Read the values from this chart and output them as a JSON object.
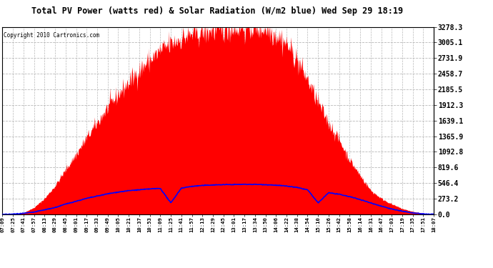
{
  "title": "Total PV Power (watts red) & Solar Radiation (W/m2 blue) Wed Sep 29 18:19",
  "copyright": "Copyright 2010 Cartronics.com",
  "y_ticks": [
    0.0,
    273.2,
    546.4,
    819.6,
    1092.8,
    1365.9,
    1639.1,
    1912.3,
    2185.5,
    2458.7,
    2731.9,
    3005.1,
    3278.3
  ],
  "y_max": 3278.3,
  "bg_color": "#ffffff",
  "plot_bg_color": "#ffffff",
  "grid_color": "#b0b0b0",
  "red_fill": "#ff0000",
  "blue_line": "#0000ff",
  "x_labels": [
    "07:09",
    "07:25",
    "07:41",
    "07:57",
    "08:13",
    "08:29",
    "08:45",
    "09:01",
    "09:17",
    "09:33",
    "09:49",
    "10:05",
    "10:21",
    "10:37",
    "10:53",
    "11:09",
    "11:25",
    "11:41",
    "11:57",
    "12:13",
    "12:29",
    "12:45",
    "13:01",
    "13:17",
    "13:34",
    "13:50",
    "14:06",
    "14:22",
    "14:38",
    "14:54",
    "15:10",
    "15:26",
    "15:42",
    "15:58",
    "16:14",
    "16:31",
    "16:47",
    "17:03",
    "17:19",
    "17:35",
    "17:51",
    "18:07"
  ],
  "pv_base_shape": [
    0,
    5,
    30,
    120,
    280,
    500,
    780,
    1050,
    1340,
    1600,
    1870,
    2100,
    2310,
    2520,
    2700,
    2860,
    2990,
    3080,
    3150,
    3200,
    3240,
    3260,
    3270,
    3275,
    3278,
    3250,
    3150,
    2980,
    2700,
    2350,
    1950,
    1600,
    1300,
    950,
    680,
    420,
    280,
    180,
    100,
    50,
    20,
    5
  ],
  "solar_base_shape": [
    0,
    5,
    18,
    40,
    80,
    120,
    180,
    230,
    280,
    320,
    360,
    390,
    415,
    430,
    445,
    455,
    200,
    460,
    490,
    505,
    515,
    520,
    522,
    525,
    524,
    520,
    510,
    495,
    470,
    430,
    200,
    380,
    350,
    310,
    260,
    200,
    145,
    95,
    55,
    25,
    8,
    2
  ]
}
